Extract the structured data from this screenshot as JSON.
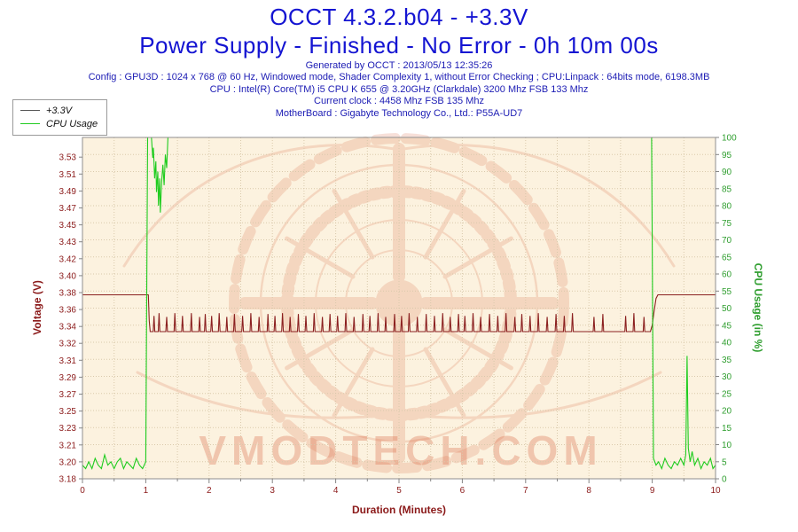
{
  "header": {
    "title_line1": "OCCT 4.3.2.b04 - +3.3V",
    "title_line2": "Power Supply - Finished - No Error - 0h 10m 00s",
    "generated": "Generated by OCCT : 2013/05/13 12:35:26",
    "config_line": "Config : GPU3D : 1024 x 768 @ 60 Hz, Windowed mode, Shader Complexity 1, without Error Checking ; CPU:Linpack : 64bits mode, 6198.3MB",
    "cpu_line": "CPU : Intel(R) Core(TM) i5 CPU K 655 @ 3.20GHz (Clarkdale) 3200 Mhz FSB 133 Mhz",
    "clock_line": "Current clock : 4458 Mhz FSB 135 Mhz",
    "motherboard_line": "MotherBoard : Gigabyte Technology Co., Ltd.: P55A-UD7"
  },
  "legend": {
    "items": [
      {
        "label": "+3.3V",
        "color": "#555555"
      },
      {
        "label": "CPU Usage",
        "color": "#22cc22"
      }
    ]
  },
  "watermark": {
    "text": "VMODTECH.COM",
    "color": "#d96a45"
  },
  "chart_data": {
    "type": "line",
    "title": "OCCT 4.3.2.b04 - +3.3V",
    "xlabel": "Duration (Minutes)",
    "ylabel_left": "Voltage (V)",
    "ylabel_right": "CPU Usage (in %)",
    "xlim": [
      0,
      10
    ],
    "x_ticks": [
      0,
      1,
      2,
      3,
      4,
      5,
      6,
      7,
      8,
      9,
      10
    ],
    "grid": true,
    "legend_position": "top-left",
    "plot_bg": "#fcf2df",
    "left_axis": {
      "range": [
        3.18,
        3.551
      ],
      "tick_step": 0.0184,
      "tick_labels": [
        "3.18",
        "3.20",
        "3.21",
        "3.23",
        "3.25",
        "3.27",
        "3.29",
        "3.31",
        "3.32",
        "3.34",
        "3.36",
        "3.38",
        "3.40",
        "3.42",
        "3.43",
        "3.45",
        "3.47",
        "3.49",
        "3.51",
        "3.53"
      ],
      "color": "#8b1a1a"
    },
    "right_axis": {
      "range": [
        0,
        100
      ],
      "ticks": [
        0,
        5,
        10,
        15,
        20,
        25,
        30,
        35,
        40,
        45,
        50,
        55,
        60,
        65,
        70,
        75,
        80,
        85,
        90,
        95,
        100
      ],
      "color": "#2f9e2f"
    },
    "series": [
      {
        "name": "+3.3V",
        "axis": "left",
        "color": "#8b2020",
        "points": [
          [
            0,
            3.38
          ],
          [
            0.6,
            3.38
          ],
          [
            1.04,
            3.38
          ],
          [
            1.055,
            3.352
          ],
          [
            1.07,
            3.34
          ],
          [
            8.97,
            3.34
          ],
          [
            9,
            3.347
          ],
          [
            9.03,
            3.362
          ],
          [
            9.06,
            3.376
          ],
          [
            9.09,
            3.38
          ],
          [
            9.6,
            3.38
          ],
          [
            10,
            3.38
          ]
        ],
        "spikes": {
          "base": 3.34,
          "half_width": 0.013,
          "events": [
            [
              1.13,
              3.357
            ],
            [
              1.21,
              3.36
            ],
            [
              1.33,
              3.356
            ],
            [
              1.46,
              3.36
            ],
            [
              1.58,
              3.357
            ],
            [
              1.72,
              3.36
            ],
            [
              1.85,
              3.356
            ],
            [
              1.94,
              3.359
            ],
            [
              2.04,
              3.357
            ],
            [
              2.16,
              3.36
            ],
            [
              2.28,
              3.356
            ],
            [
              2.4,
              3.359
            ],
            [
              2.53,
              3.357
            ],
            [
              2.66,
              3.36
            ],
            [
              2.79,
              3.356
            ],
            [
              2.93,
              3.359
            ],
            [
              3.04,
              3.357
            ],
            [
              3.16,
              3.36
            ],
            [
              3.28,
              3.356
            ],
            [
              3.41,
              3.359
            ],
            [
              3.53,
              3.357
            ],
            [
              3.66,
              3.36
            ],
            [
              3.79,
              3.356
            ],
            [
              3.91,
              3.359
            ],
            [
              4.03,
              3.357
            ],
            [
              4.16,
              3.36
            ],
            [
              4.29,
              3.356
            ],
            [
              4.43,
              3.359
            ],
            [
              4.54,
              3.357
            ],
            [
              4.67,
              3.36
            ],
            [
              4.79,
              3.356
            ],
            [
              4.93,
              3.359
            ],
            [
              5.04,
              3.357
            ],
            [
              5.16,
              3.36
            ],
            [
              5.29,
              3.356
            ],
            [
              5.43,
              3.359
            ],
            [
              5.56,
              3.357
            ],
            [
              5.69,
              3.36
            ],
            [
              5.81,
              3.356
            ],
            [
              5.94,
              3.359
            ],
            [
              6.04,
              3.357
            ],
            [
              6.17,
              3.36
            ],
            [
              6.29,
              3.356
            ],
            [
              6.43,
              3.359
            ],
            [
              6.56,
              3.357
            ],
            [
              6.69,
              3.36
            ],
            [
              6.83,
              3.356
            ],
            [
              6.94,
              3.359
            ],
            [
              7.07,
              3.357
            ],
            [
              7.2,
              3.36
            ],
            [
              7.34,
              3.356
            ],
            [
              7.48,
              3.359
            ],
            [
              7.61,
              3.357
            ],
            [
              7.74,
              3.36
            ],
            [
              8.08,
              3.356
            ],
            [
              8.22,
              3.359
            ],
            [
              8.58,
              3.357
            ],
            [
              8.71,
              3.36
            ],
            [
              8.87,
              3.356
            ]
          ]
        }
      },
      {
        "name": "CPU Usage",
        "axis": "right",
        "color": "#1ecc1e",
        "points": [
          [
            0,
            4
          ],
          [
            0.05,
            3
          ],
          [
            0.1,
            5
          ],
          [
            0.15,
            3
          ],
          [
            0.2,
            6
          ],
          [
            0.25,
            4
          ],
          [
            0.3,
            3
          ],
          [
            0.35,
            7
          ],
          [
            0.4,
            4
          ],
          [
            0.45,
            5
          ],
          [
            0.5,
            3
          ],
          [
            0.55,
            5
          ],
          [
            0.6,
            6
          ],
          [
            0.65,
            3
          ],
          [
            0.7,
            5
          ],
          [
            0.75,
            4
          ],
          [
            0.8,
            3
          ],
          [
            0.85,
            6
          ],
          [
            0.9,
            4
          ],
          [
            0.95,
            3
          ],
          [
            1,
            5
          ],
          [
            1.03,
            100
          ],
          [
            1.09,
            100
          ],
          [
            1.11,
            94
          ],
          [
            1.12,
            97
          ],
          [
            1.14,
            88
          ],
          [
            1.16,
            93
          ],
          [
            1.17,
            84
          ],
          [
            1.19,
            90
          ],
          [
            1.2,
            80
          ],
          [
            1.22,
            88
          ],
          [
            1.23,
            78
          ],
          [
            1.25,
            87
          ],
          [
            1.27,
            92
          ],
          [
            1.29,
            86
          ],
          [
            1.31,
            95
          ],
          [
            1.33,
            91
          ],
          [
            1.35,
            100
          ],
          [
            8.99,
            100
          ],
          [
            9.02,
            6
          ],
          [
            9.06,
            4
          ],
          [
            9.1,
            5
          ],
          [
            9.15,
            3
          ],
          [
            9.2,
            6
          ],
          [
            9.25,
            4
          ],
          [
            9.3,
            3
          ],
          [
            9.35,
            5
          ],
          [
            9.4,
            4
          ],
          [
            9.45,
            6
          ],
          [
            9.5,
            4
          ],
          [
            9.53,
            7
          ],
          [
            9.55,
            36
          ],
          [
            9.57,
            9
          ],
          [
            9.6,
            5
          ],
          [
            9.63,
            8
          ],
          [
            9.67,
            4
          ],
          [
            9.72,
            6
          ],
          [
            9.77,
            3
          ],
          [
            9.82,
            5
          ],
          [
            9.87,
            4
          ],
          [
            9.92,
            6
          ],
          [
            9.96,
            3
          ],
          [
            10,
            4
          ]
        ]
      }
    ]
  }
}
